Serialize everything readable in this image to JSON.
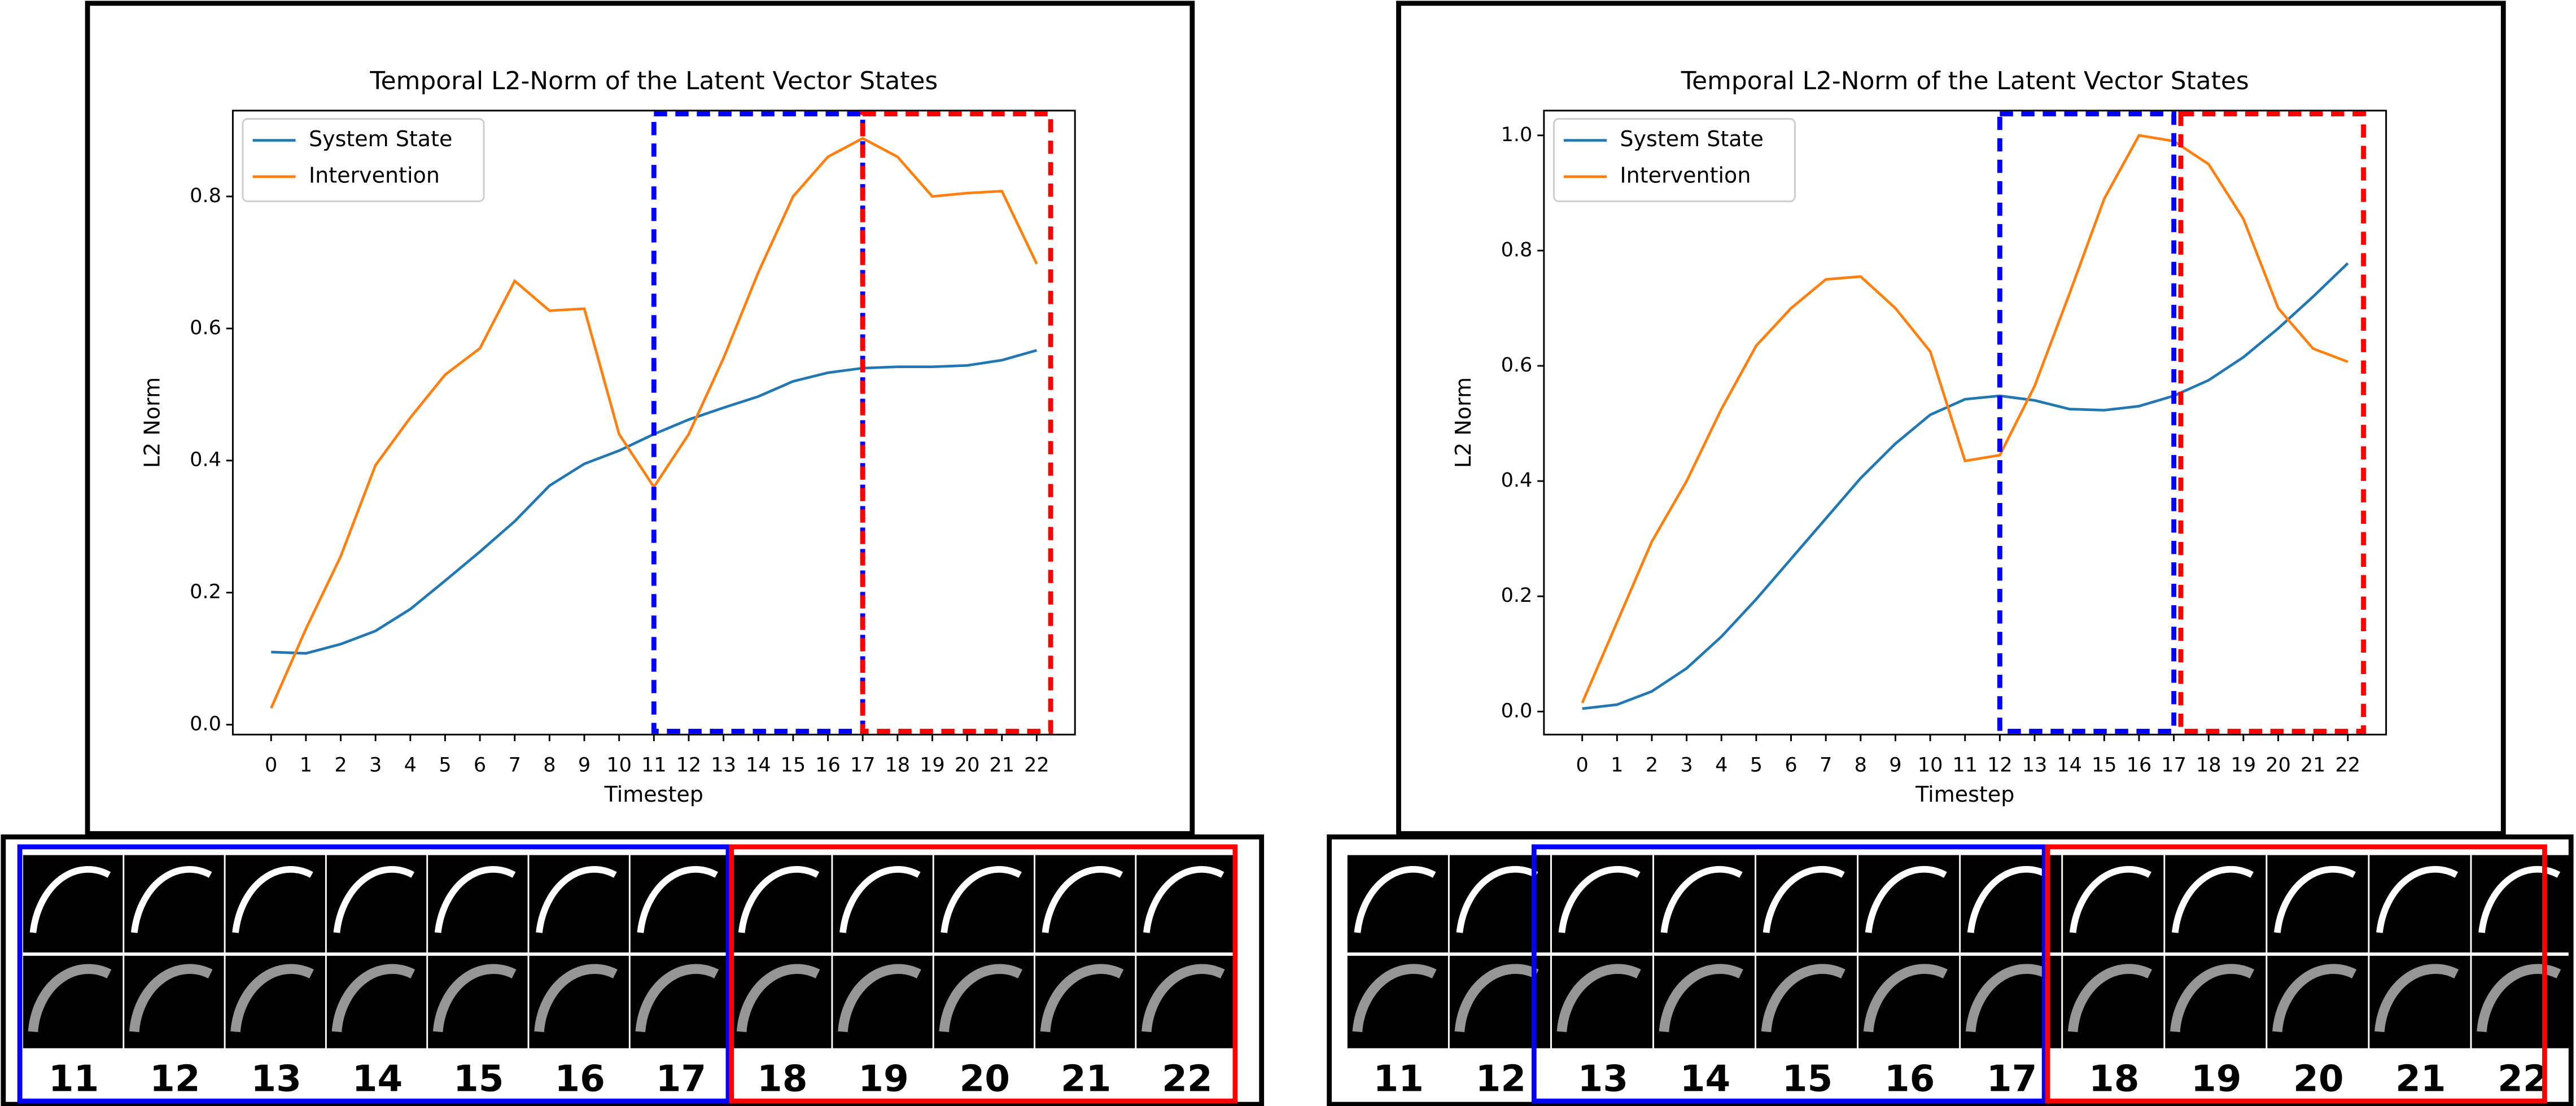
{
  "chart_data": [
    {
      "type": "line",
      "title": "Temporal L2-Norm of the Latent Vector States",
      "x_label": "Timestep",
      "y_label": "L2 Norm",
      "x": [
        0,
        1,
        2,
        3,
        4,
        5,
        6,
        7,
        8,
        9,
        10,
        11,
        12,
        13,
        14,
        15,
        16,
        17,
        18,
        19,
        20,
        21,
        22
      ],
      "xlim": [
        -1.1,
        23.1
      ],
      "xticks": [
        0,
        1,
        2,
        3,
        4,
        5,
        6,
        7,
        8,
        9,
        10,
        11,
        12,
        13,
        14,
        15,
        16,
        17,
        18,
        19,
        20,
        21,
        22
      ],
      "ylim": [
        -0.015,
        0.93
      ],
      "yticks": [
        {
          "value": 0,
          "label": "0.0"
        },
        {
          "value": 0.2,
          "label": "0.2"
        },
        {
          "value": 0.4,
          "label": "0.4"
        },
        {
          "value": 0.6,
          "label": "0.6"
        },
        {
          "value": 0.8,
          "label": "0.8"
        }
      ],
      "legend": "upper left",
      "series": [
        {
          "name": "System State",
          "color": "#1f77b4",
          "values": [
            0.11,
            0.108,
            0.122,
            0.142,
            0.175,
            0.218,
            0.262,
            0.308,
            0.362,
            0.395,
            0.415,
            0.44,
            0.462,
            0.48,
            0.497,
            0.52,
            0.533,
            0.54,
            0.542,
            0.542,
            0.544,
            0.552,
            0.567
          ]
        },
        {
          "name": "Intervention",
          "color": "#ff7f0e",
          "values": [
            0.025,
            0.145,
            0.255,
            0.393,
            0.465,
            0.53,
            0.57,
            0.672,
            0.627,
            0.63,
            0.44,
            0.36,
            0.44,
            0.555,
            0.685,
            0.8,
            0.86,
            0.888,
            0.86,
            0.8,
            0.805,
            0.808,
            0.698
          ]
        }
      ],
      "highlight_boxes": [
        {
          "x0": 11,
          "x1": 17,
          "color": "#0000ff"
        },
        {
          "x0": 17,
          "x1": 22.4,
          "color": "#ff0000"
        }
      ]
    },
    {
      "type": "line",
      "title": "Temporal L2-Norm of the Latent Vector States",
      "x_label": "Timestep",
      "y_label": "L2 Norm",
      "x": [
        0,
        1,
        2,
        3,
        4,
        5,
        6,
        7,
        8,
        9,
        10,
        11,
        12,
        13,
        14,
        15,
        16,
        17,
        18,
        19,
        20,
        21,
        22
      ],
      "xlim": [
        -1.1,
        23.1
      ],
      "xticks": [
        0,
        1,
        2,
        3,
        4,
        5,
        6,
        7,
        8,
        9,
        10,
        11,
        12,
        13,
        14,
        15,
        16,
        17,
        18,
        19,
        20,
        21,
        22
      ],
      "ylim": [
        -0.04,
        1.043
      ],
      "yticks": [
        {
          "value": 0,
          "label": "0.0"
        },
        {
          "value": 0.2,
          "label": "0.2"
        },
        {
          "value": 0.4,
          "label": "0.4"
        },
        {
          "value": 0.6,
          "label": "0.6"
        },
        {
          "value": 0.8,
          "label": "0.8"
        },
        {
          "value": 1,
          "label": "1.0"
        }
      ],
      "legend": "upper left",
      "series": [
        {
          "name": "System State",
          "color": "#1f77b4",
          "values": [
            0.005,
            0.012,
            0.035,
            0.075,
            0.13,
            0.195,
            0.265,
            0.335,
            0.405,
            0.465,
            0.515,
            0.542,
            0.548,
            0.54,
            0.525,
            0.523,
            0.53,
            0.548,
            0.575,
            0.615,
            0.665,
            0.72,
            0.778
          ]
        },
        {
          "name": "Intervention",
          "color": "#ff7f0e",
          "values": [
            0.015,
            0.155,
            0.295,
            0.4,
            0.525,
            0.635,
            0.7,
            0.75,
            0.755,
            0.7,
            0.625,
            0.435,
            0.445,
            0.565,
            0.725,
            0.89,
            1.0,
            0.99,
            0.95,
            0.855,
            0.7,
            0.63,
            0.607
          ]
        }
      ],
      "highlight_boxes": [
        {
          "x0": 12,
          "x1": 17,
          "color": "#0000ff"
        },
        {
          "x0": 17.2,
          "x1": 22.45,
          "color": "#ff0000"
        }
      ]
    }
  ],
  "strips": [
    {
      "labels": [
        11,
        12,
        13,
        14,
        15,
        16,
        17,
        18,
        19,
        20,
        21,
        22
      ]
    },
    {
      "labels": [
        11,
        12,
        13,
        14,
        15,
        16,
        17,
        18,
        19,
        20,
        21,
        22
      ]
    }
  ]
}
